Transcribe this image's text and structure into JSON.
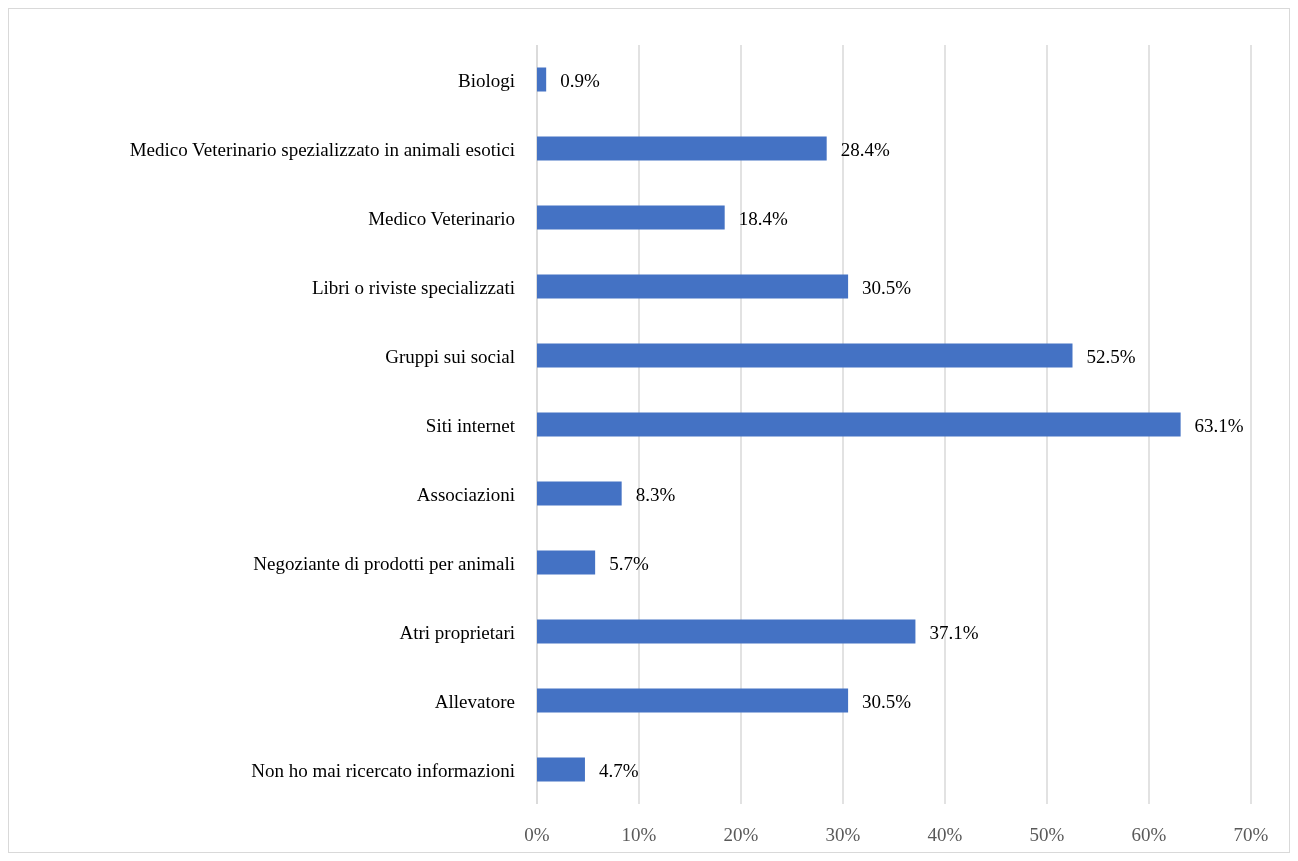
{
  "chart_data": {
    "type": "bar",
    "orientation": "horizontal",
    "categories": [
      "Biologi",
      "Medico Veterinario spezializzato in animali esotici",
      "Medico Veterinario",
      "Libri o riviste specializzati",
      "Gruppi sui social",
      "Siti internet",
      "Associazioni",
      "Negoziante di prodotti per animali",
      "Atri proprietari",
      "Allevatore",
      "Non ho mai ricercato informazioni"
    ],
    "values": [
      0.9,
      28.4,
      18.4,
      30.5,
      52.5,
      63.1,
      8.3,
      5.7,
      37.1,
      30.5,
      4.7
    ],
    "value_labels": [
      "0.9%",
      "28.4%",
      "18.4%",
      "30.5%",
      "52.5%",
      "63.1%",
      "8.3%",
      "5.7%",
      "37.1%",
      "30.5%",
      "4.7%"
    ],
    "color": "#4472c4",
    "xlim": [
      0,
      70
    ],
    "xticks": [
      {
        "value": 0,
        "label": "0%"
      },
      {
        "value": 10,
        "label": "10%"
      },
      {
        "value": 20,
        "label": "20%"
      },
      {
        "value": 30,
        "label": "30%"
      },
      {
        "value": 40,
        "label": "40%"
      },
      {
        "value": 50,
        "label": "50%"
      },
      {
        "value": 60,
        "label": "60%"
      },
      {
        "value": 70,
        "label": "70%"
      }
    ],
    "grid": "x"
  }
}
